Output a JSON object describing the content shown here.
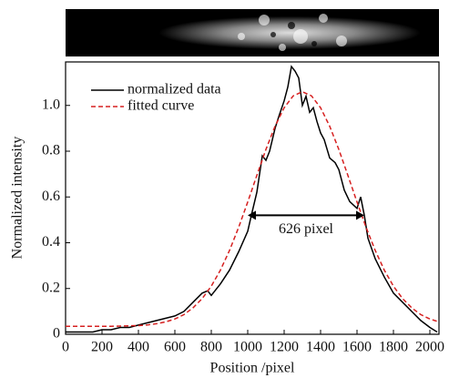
{
  "chart_data": {
    "type": "line",
    "xlabel": "Position /pixel",
    "ylabel": "Normalized intensity",
    "xlim": [
      0,
      2050
    ],
    "ylim": [
      0,
      1.19
    ],
    "xticks": [
      0,
      200,
      400,
      600,
      800,
      1000,
      1200,
      1400,
      1600,
      1800,
      2000
    ],
    "yticks": [
      0,
      0.2,
      0.4,
      0.6,
      0.8,
      {
        "value": 1,
        "label": "1.0"
      }
    ],
    "legend": "upper left",
    "series": [
      {
        "name": "normalized data",
        "color": "#000000",
        "style": "solid",
        "x": [
          0,
          50,
          100,
          150,
          200,
          250,
          300,
          350,
          400,
          450,
          500,
          550,
          600,
          650,
          700,
          750,
          780,
          800,
          850,
          900,
          950,
          1000,
          1020,
          1050,
          1080,
          1100,
          1120,
          1150,
          1170,
          1200,
          1220,
          1240,
          1260,
          1280,
          1300,
          1320,
          1340,
          1360,
          1380,
          1400,
          1420,
          1450,
          1480,
          1500,
          1530,
          1560,
          1600,
          1620,
          1640,
          1660,
          1700,
          1750,
          1800,
          1850,
          1900,
          1950,
          2000,
          2040
        ],
        "values": [
          0.01,
          0.01,
          0.01,
          0.01,
          0.02,
          0.02,
          0.03,
          0.03,
          0.04,
          0.05,
          0.06,
          0.07,
          0.08,
          0.1,
          0.14,
          0.18,
          0.19,
          0.17,
          0.22,
          0.28,
          0.36,
          0.45,
          0.52,
          0.62,
          0.78,
          0.76,
          0.8,
          0.9,
          0.95,
          1.02,
          1.08,
          1.17,
          1.15,
          1.12,
          1.0,
          1.04,
          0.97,
          0.99,
          0.93,
          0.88,
          0.85,
          0.77,
          0.75,
          0.72,
          0.63,
          0.58,
          0.55,
          0.6,
          0.52,
          0.42,
          0.33,
          0.25,
          0.18,
          0.14,
          0.1,
          0.06,
          0.03,
          0.01
        ]
      },
      {
        "name": "fitted curve",
        "color": "#d62020",
        "style": "dashed",
        "x": [
          0,
          50,
          100,
          150,
          200,
          250,
          300,
          350,
          400,
          450,
          500,
          550,
          600,
          650,
          700,
          750,
          800,
          850,
          900,
          950,
          1000,
          1050,
          1100,
          1150,
          1200,
          1250,
          1300,
          1350,
          1400,
          1450,
          1500,
          1550,
          1600,
          1650,
          1700,
          1750,
          1800,
          1850,
          1900,
          1950,
          2000,
          2050
        ],
        "values": [
          0.035,
          0.035,
          0.035,
          0.035,
          0.035,
          0.035,
          0.036,
          0.037,
          0.038,
          0.041,
          0.046,
          0.054,
          0.067,
          0.086,
          0.116,
          0.156,
          0.21,
          0.28,
          0.366,
          0.467,
          0.578,
          0.694,
          0.808,
          0.909,
          0.99,
          1.042,
          1.06,
          1.042,
          0.99,
          0.909,
          0.808,
          0.694,
          0.578,
          0.467,
          0.366,
          0.28,
          0.21,
          0.156,
          0.116,
          0.086,
          0.067,
          0.054
        ]
      }
    ],
    "annotation": {
      "text": "626 pixel",
      "x": [
        1000,
        1640
      ],
      "y": 0.52
    }
  }
}
